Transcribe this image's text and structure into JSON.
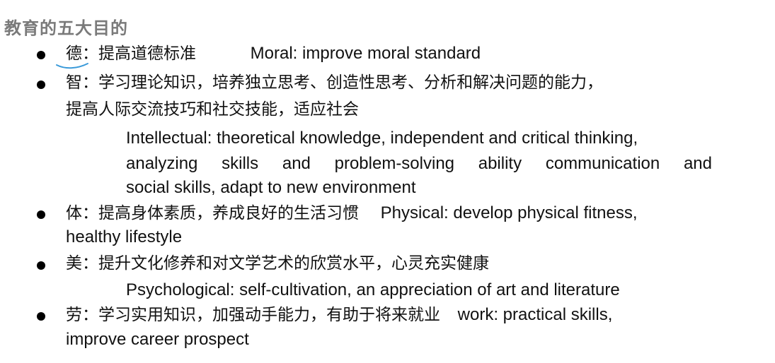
{
  "title": "教育的五大目的",
  "items": [
    {
      "cn": "德：提高道德标准",
      "en": "Moral: improve moral standard"
    },
    {
      "cn_line1": "智：学习理论知识，培养独立思考、创造性思考、分析和解决问题的能力，",
      "cn_line2": "提高人际交流技巧和社交技能，适应社会",
      "en_line1": "Intellectual: theoretical knowledge, independent and critical thinking,",
      "en_line2_words": [
        "analyzing",
        "skills",
        "and",
        "problem-solving",
        "ability",
        "communication",
        "and"
      ],
      "en_line3": "social skills, adapt to new environment"
    },
    {
      "cn": "体：提高身体素质，养成良好的生活习惯",
      "en_line1": "Physical: develop physical fitness,",
      "en_line2": "healthy lifestyle"
    },
    {
      "cn": "美：提升文化修养和对文学艺术的欣赏水平，心灵充实健康",
      "en": "Psychological: self-cultivation, an appreciation of art and literature"
    },
    {
      "cn": "劳：学习实用知识，加强动手能力，有助于将来就业",
      "en_line1": "work: practical skills,",
      "en_line2": "improve career prospect"
    }
  ]
}
